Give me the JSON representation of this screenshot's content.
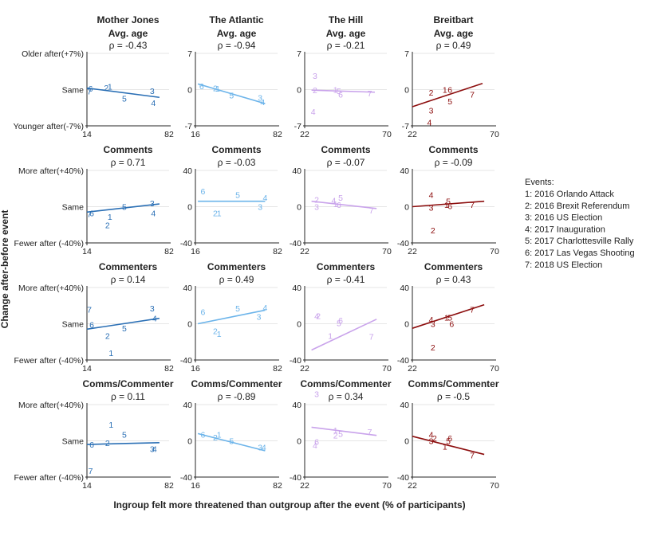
{
  "chart_data": {
    "type": "scatter",
    "y_axis_label": "Change after-before event",
    "x_axis_label": "Ingroup felt more threatened than outgroup after the event (% of participants)",
    "legend": {
      "title": "Events:",
      "items": [
        "1: 2016 Orlando Attack",
        "2: 2016 Brexit Referendum",
        "3: 2016 US Election",
        "4: 2017 Inauguration",
        "5: 2017 Charlottesville Rally",
        "6: 2017 Las Vegas Shooting",
        "7: 2018 US Election"
      ]
    },
    "columns": [
      {
        "outlet": "Mother Jones",
        "color": "#2a6fb5",
        "xlim": [
          14,
          82
        ],
        "xticks": [
          "14",
          "82"
        ]
      },
      {
        "outlet": "The Atlantic",
        "color": "#6cb4ea",
        "xlim": [
          16,
          82
        ],
        "xticks": [
          "16",
          "82"
        ]
      },
      {
        "outlet": "The Hill",
        "color": "#c9a3eb",
        "xlim": [
          22,
          70
        ],
        "xticks": [
          "22",
          "70"
        ]
      },
      {
        "outlet": "Breitbart",
        "color": "#8c0d0d",
        "xlim": [
          22,
          70
        ],
        "xticks": [
          "22",
          "70"
        ]
      }
    ],
    "rows": [
      {
        "metric": "Avg. age",
        "titles": [
          "Mother Jones\nAvg. age",
          "The Atlantic\nAvg. age",
          "The Hill\nAvg. age",
          "Breitbart\nAvg. age"
        ],
        "ylim": [
          -7,
          7
        ],
        "yticks_first": [
          "Older after(+7%)",
          "Same",
          "Younger after(-7%)"
        ],
        "yticks_other": [
          "7",
          "0",
          "-7"
        ]
      },
      {
        "metric": "Comments",
        "titles": [
          "Comments",
          "Comments",
          "Comments",
          "Comments"
        ],
        "ylim": [
          -40,
          40
        ],
        "yticks_first": [
          "More after(+40%)",
          "Same",
          "Fewer after (-40%)"
        ],
        "yticks_other": [
          "40",
          "0",
          "-40"
        ]
      },
      {
        "metric": "Commenters",
        "titles": [
          "Commenters",
          "Commenters",
          "Commenters",
          "Commenters"
        ],
        "ylim": [
          -40,
          40
        ],
        "yticks_first": [
          "More after(+40%)",
          "Same",
          "Fewer after (-40%)"
        ],
        "yticks_other": [
          "40",
          "0",
          "-40"
        ]
      },
      {
        "metric": "Comms/Commenter",
        "titles": [
          "Comms/Commenter",
          "Comms/Commenter",
          "Comms/Commenter",
          "Comms/Commenter"
        ],
        "ylim": [
          -40,
          40
        ],
        "yticks_first": [
          "More after(+40%)",
          "Same",
          "Fewer after (-40%)"
        ],
        "yticks_other": [
          "40",
          "0",
          "-40"
        ]
      }
    ],
    "panels": [
      [
        {
          "rho": "ρ = -0.43",
          "fit": [
            [
              14,
              0.3
            ],
            [
              74,
              -1.5
            ]
          ],
          "points": [
            [
              17,
              0.2,
              "6"
            ],
            [
              16,
              -0.3,
              "7"
            ],
            [
              30,
              0.4,
              "2"
            ],
            [
              33,
              0.6,
              "1"
            ],
            [
              45,
              -1.7,
              "5"
            ],
            [
              68,
              -0.2,
              "3"
            ],
            [
              69,
              -2.5,
              "4"
            ]
          ]
        },
        {
          "rho": "ρ = -0.94",
          "fit": [
            [
              18,
              1.1
            ],
            [
              72,
              -2.7
            ]
          ],
          "points": [
            [
              21,
              0.7,
              "6"
            ],
            [
              32,
              0.3,
              "2"
            ],
            [
              34,
              0.2,
              "1"
            ],
            [
              45,
              -1.1,
              "5"
            ],
            [
              68,
              -1.5,
              "3"
            ],
            [
              70,
              -2.4,
              "4"
            ]
          ]
        },
        {
          "rho": "ρ = -0.21",
          "fit": [
            [
              26,
              -0.1
            ],
            [
              63,
              -0.5
            ]
          ],
          "points": [
            [
              28,
              2.7,
              "3"
            ],
            [
              28,
              -0.1,
              "2"
            ],
            [
              27,
              -4.2,
              "4"
            ],
            [
              40,
              0,
              "1"
            ],
            [
              42,
              -0.2,
              "5"
            ],
            [
              43,
              -0.9,
              "6"
            ],
            [
              60,
              -0.7,
              "7"
            ]
          ]
        },
        {
          "rho": "ρ = 0.49",
          "fit": [
            [
              22,
              -3.3
            ],
            [
              63,
              1.2
            ]
          ],
          "points": [
            [
              33,
              -0.5,
              "2"
            ],
            [
              41,
              0.0,
              "1"
            ],
            [
              44,
              0.0,
              "6"
            ],
            [
              44,
              -2.2,
              "5"
            ],
            [
              33,
              -4.0,
              "3"
            ],
            [
              32,
              -6.3,
              "4"
            ],
            [
              57,
              -0.9,
              "7"
            ]
          ]
        }
      ],
      [
        {
          "rho": "ρ = 0.71",
          "fit": [
            [
              14,
              -6
            ],
            [
              74,
              3
            ]
          ],
          "points": [
            [
              16,
              -8,
              "7"
            ],
            [
              18,
              -7,
              "6"
            ],
            [
              33,
              -11,
              "1"
            ],
            [
              31,
              -20,
              "2"
            ],
            [
              45,
              0,
              "5"
            ],
            [
              68,
              4,
              "3"
            ],
            [
              69,
              -7,
              "4"
            ]
          ]
        },
        {
          "rho": "ρ = -0.03",
          "fit": [
            [
              18,
              6
            ],
            [
              72,
              6
            ]
          ],
          "points": [
            [
              22,
              17,
              "6"
            ],
            [
              32,
              -7,
              "2"
            ],
            [
              35,
              -7,
              "1"
            ],
            [
              50,
              13,
              "5"
            ],
            [
              68,
              0,
              "3"
            ],
            [
              72,
              10,
              "4"
            ]
          ]
        },
        {
          "rho": "ρ = -0.07",
          "fit": [
            [
              26,
              6
            ],
            [
              64,
              -2
            ]
          ],
          "points": [
            [
              29,
              8,
              "2"
            ],
            [
              29,
              0,
              "3"
            ],
            [
              39,
              7,
              "4"
            ],
            [
              40,
              3,
              "1"
            ],
            [
              43,
              10,
              "5"
            ],
            [
              42,
              2,
              "6"
            ],
            [
              61,
              -4,
              "7"
            ]
          ]
        },
        {
          "rho": "ρ = -0.09",
          "fit": [
            [
              22,
              0
            ],
            [
              64,
              6
            ]
          ],
          "points": [
            [
              33,
              13,
              "4"
            ],
            [
              33,
              -1,
              "3"
            ],
            [
              43,
              6,
              "5"
            ],
            [
              42,
              2,
              "1"
            ],
            [
              44,
              1,
              "6"
            ],
            [
              57,
              2,
              "7"
            ],
            [
              34,
              -26,
              "2"
            ]
          ]
        }
      ],
      [
        {
          "rho": "ρ = 0.14",
          "fit": [
            [
              14,
              -6
            ],
            [
              74,
              6
            ]
          ],
          "points": [
            [
              16,
              16,
              "7"
            ],
            [
              18,
              -1,
              "6"
            ],
            [
              45,
              -5,
              "5"
            ],
            [
              31,
              -13,
              "2"
            ],
            [
              34,
              -32,
              "1"
            ],
            [
              68,
              17,
              "3"
            ],
            [
              70,
              6,
              "4"
            ]
          ]
        },
        {
          "rho": "ρ = 0.49",
          "fit": [
            [
              18,
              0
            ],
            [
              72,
              15
            ]
          ],
          "points": [
            [
              22,
              13,
              "6"
            ],
            [
              50,
              17,
              "5"
            ],
            [
              72,
              18,
              "4"
            ],
            [
              67,
              8,
              "3"
            ],
            [
              32,
              -8,
              "2"
            ],
            [
              35,
              -11,
              "1"
            ]
          ]
        },
        {
          "rho": "ρ = -0.41",
          "fit": [
            [
              26,
              -29
            ],
            [
              64,
              5
            ]
          ],
          "points": [
            [
              29,
              9,
              "4"
            ],
            [
              30,
              9,
              "2"
            ],
            [
              43,
              4,
              "6"
            ],
            [
              42,
              1,
              "5"
            ],
            [
              37,
              -13,
              "1"
            ],
            [
              61,
              -14,
              "7"
            ]
          ]
        },
        {
          "rho": "ρ = 0.43",
          "fit": [
            [
              22,
              -5
            ],
            [
              64,
              21
            ]
          ],
          "points": [
            [
              33,
              5,
              "4"
            ],
            [
              42,
              7,
              "1"
            ],
            [
              44,
              7,
              "5"
            ],
            [
              34,
              0,
              "3"
            ],
            [
              45,
              0,
              "6"
            ],
            [
              57,
              16,
              "7"
            ],
            [
              34,
              -26,
              "2"
            ]
          ]
        }
      ],
      [
        {
          "rho": "ρ = 0.11",
          "fit": [
            [
              14,
              -4
            ],
            [
              74,
              -2
            ]
          ],
          "points": [
            [
              34,
              18,
              "1"
            ],
            [
              45,
              7,
              "5"
            ],
            [
              18,
              -4,
              "6"
            ],
            [
              31,
              -2,
              "2"
            ],
            [
              68,
              -9,
              "3"
            ],
            [
              70,
              -9,
              "4"
            ],
            [
              17,
              -33,
              "7"
            ]
          ]
        },
        {
          "rho": "ρ = -0.89",
          "fit": [
            [
              18,
              8
            ],
            [
              72,
              -11
            ]
          ],
          "points": [
            [
              22,
              7,
              "6"
            ],
            [
              35,
              7,
              "1"
            ],
            [
              32,
              4,
              "2"
            ],
            [
              45,
              0,
              "5"
            ],
            [
              68,
              -7,
              "3"
            ],
            [
              71,
              -7,
              "4"
            ]
          ]
        },
        {
          "rho": "ρ = 0.34",
          "fit": [
            [
              26,
              15
            ],
            [
              64,
              6
            ]
          ],
          "points": [
            [
              29,
              52,
              "3"
            ],
            [
              40,
              12,
              "1"
            ],
            [
              43,
              8,
              "5"
            ],
            [
              40,
              6,
              "2"
            ],
            [
              29,
              -1,
              "6"
            ],
            [
              28,
              -5,
              "4"
            ],
            [
              60,
              10,
              "7"
            ]
          ]
        },
        {
          "rho": "ρ = -0.5",
          "fit": [
            [
              22,
              5
            ],
            [
              64,
              -15
            ]
          ],
          "points": [
            [
              33,
              7,
              "4"
            ],
            [
              35,
              3,
              "2"
            ],
            [
              33,
              0,
              "3"
            ],
            [
              44,
              3,
              "6"
            ],
            [
              43,
              0,
              "5"
            ],
            [
              41,
              -6,
              "1"
            ],
            [
              57,
              -16,
              "7"
            ]
          ]
        }
      ]
    ]
  }
}
